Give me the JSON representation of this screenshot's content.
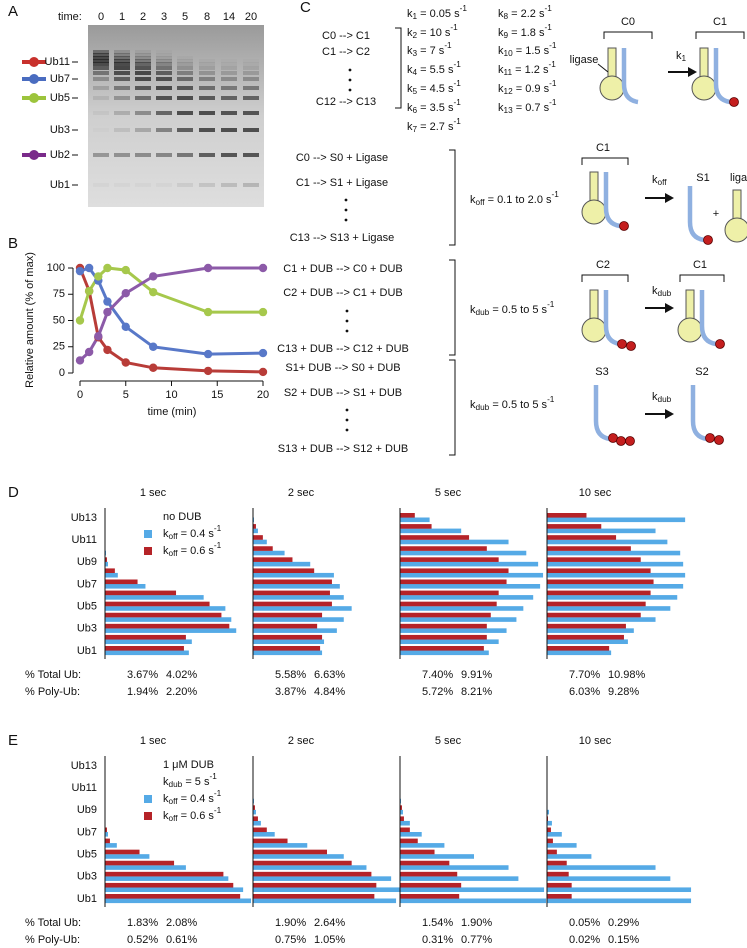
{
  "gel": {
    "panel_label": "A",
    "time_label": "time:",
    "lanes": [
      "0",
      "1",
      "2",
      "3",
      "5",
      "8",
      "14",
      "20"
    ],
    "markers": [
      {
        "label": "Ub11",
        "color": "#c8302c"
      },
      {
        "label": "Ub7",
        "color": "#4a6cc0"
      },
      {
        "label": "Ub5",
        "color": "#9cc43c"
      },
      {
        "label": "Ub3"
      },
      {
        "label": "Ub2",
        "color": "#7a2a8a"
      },
      {
        "label": "Ub1"
      }
    ]
  },
  "scheme": {
    "panel_label": "C",
    "rates": [
      [
        {
          "t": "k"
        },
        {
          "sub": "1"
        },
        {
          "t": " = 0.05 s"
        },
        {
          "sup": "-1"
        }
      ],
      [
        {
          "t": "k"
        },
        {
          "sub": "2"
        },
        {
          "t": " = 10 s"
        },
        {
          "sup": "-1"
        }
      ],
      [
        {
          "t": "k"
        },
        {
          "sub": "3"
        },
        {
          "t": " = 7 s"
        },
        {
          "sup": "-1"
        }
      ],
      [
        {
          "t": "k"
        },
        {
          "sub": "4"
        },
        {
          "t": " = 5.5 s"
        },
        {
          "sup": "-1"
        }
      ],
      [
        {
          "t": "k"
        },
        {
          "sub": "5"
        },
        {
          "t": " = 4.5 s"
        },
        {
          "sup": "-1"
        }
      ],
      [
        {
          "t": "k"
        },
        {
          "sub": "6"
        },
        {
          "t": " = 3.5 s"
        },
        {
          "sup": "-1"
        }
      ],
      [
        {
          "t": "k"
        },
        {
          "sub": "7"
        },
        {
          "t": " = 2.7 s"
        },
        {
          "sup": "-1"
        }
      ],
      [
        {
          "t": "k"
        },
        {
          "sub": "8"
        },
        {
          "t": " = 2.2 s"
        },
        {
          "sup": "-1"
        }
      ],
      [
        {
          "t": "k"
        },
        {
          "sub": "9"
        },
        {
          "t": " = 1.8 s"
        },
        {
          "sup": "-1"
        }
      ],
      [
        {
          "t": "k"
        },
        {
          "sub": "10"
        },
        {
          "t": " = 1.5 s"
        },
        {
          "sup": "-1"
        }
      ],
      [
        {
          "t": "k"
        },
        {
          "sub": "11"
        },
        {
          "t": " = 1.2 s"
        },
        {
          "sup": "-1"
        }
      ],
      [
        {
          "t": "k"
        },
        {
          "sub": "12"
        },
        {
          "t": " = 0.9 s"
        },
        {
          "sup": "-1"
        }
      ],
      [
        {
          "t": "k"
        },
        {
          "sub": "13"
        },
        {
          "t": " = 0.7 s"
        },
        {
          "sup": "-1"
        }
      ]
    ],
    "blocks": [
      {
        "reactions": [
          "C0 --> C1",
          "C1 --> C2",
          "C12 --> C13"
        ]
      },
      {
        "reactions": [
          "C0 --> S0 + Ligase",
          "C1 --> S1 + Ligase",
          "C13 --> S13 + Ligase"
        ],
        "rate": [
          {
            "t": "k"
          },
          {
            "sub": "off"
          },
          {
            "t": " = 0.1 to 2.0 s"
          },
          {
            "sup": "-1"
          }
        ]
      },
      {
        "reactions": [
          "C1 + DUB --> C0 + DUB",
          "C2 + DUB --> C1 + DUB",
          "C13 + DUB --> C12 + DUB"
        ],
        "rate": [
          {
            "t": "k"
          },
          {
            "sub": "dub"
          },
          {
            "t": " = 0.5 to 5 s"
          },
          {
            "sup": "-1"
          }
        ]
      },
      {
        "reactions": [
          "S1+ DUB --> S0 + DUB",
          "S2 + DUB --> S1 + DUB",
          "S13 + DUB --> S12 + DUB"
        ],
        "rate": [
          {
            "t": "k"
          },
          {
            "sub": "dub"
          },
          {
            "t": " = 0.5 to 5 s"
          },
          {
            "sup": "-1"
          }
        ]
      }
    ],
    "diagrams": [
      {
        "before": "C0",
        "after": "C1",
        "tag": "ligase",
        "arrow": [
          {
            "t": "k"
          },
          {
            "sub": "1"
          }
        ]
      },
      {
        "before": "C1",
        "after": "S1",
        "plus": "+",
        "tag": "ligase",
        "arrow": [
          {
            "t": "k"
          },
          {
            "sub": "off"
          }
        ]
      },
      {
        "before": "C2",
        "after": "C1",
        "arrow": [
          {
            "t": "k"
          },
          {
            "sub": "dub"
          }
        ]
      },
      {
        "before": "S3",
        "after": "S2",
        "arrow": [
          {
            "t": "k"
          },
          {
            "sub": "dub"
          }
        ]
      }
    ]
  },
  "chart_data": [
    {
      "type": "line",
      "panel_label": "B",
      "x": [
        0,
        1,
        2,
        3,
        5,
        8,
        14,
        20
      ],
      "xlim": [
        0,
        20
      ],
      "xticks": [
        0,
        5,
        10,
        15,
        20
      ],
      "ylim": [
        0,
        100
      ],
      "yticks": [
        0,
        25,
        50,
        75,
        100
      ],
      "xlabel": "time (min)",
      "ylabel": "Relative amount (% of max)",
      "series": [
        {
          "color": "#b83c38",
          "values": [
            100,
            78,
            34,
            22,
            10,
            5,
            2,
            1
          ]
        },
        {
          "color": "#5878c8",
          "values": [
            97,
            100,
            88,
            68,
            44,
            25,
            18,
            19
          ]
        },
        {
          "color": "#a6c84c",
          "values": [
            50,
            78,
            92,
            100,
            98,
            77,
            58,
            58
          ]
        },
        {
          "color": "#8c5aa8",
          "values": [
            12,
            20,
            35,
            58,
            76,
            92,
            100,
            100
          ]
        }
      ]
    },
    {
      "type": "hbar-panel",
      "panel_label": "D",
      "categories": [
        "Ub1",
        null,
        "Ub3",
        null,
        "Ub5",
        null,
        "Ub7",
        null,
        "Ub9",
        null,
        "Ub11",
        null,
        "Ub13"
      ],
      "xlim": [
        0,
        150
      ],
      "legend_title": [
        [
          {
            "t": "no DUB"
          }
        ]
      ],
      "series": [
        {
          "name": [
            {
              "t": "k"
            },
            {
              "sub": "off"
            },
            {
              "t": " = 0.4 s"
            },
            {
              "sup": "-1"
            }
          ],
          "color": "#55aae6"
        },
        {
          "name": [
            {
              "t": "k"
            },
            {
              "sub": "off"
            },
            {
              "t": " = 0.6 s"
            },
            {
              "sup": "-1"
            }
          ],
          "color": "#b52328"
        }
      ],
      "stat_labels": [
        "% Total Ub:",
        "% Poly-Ub:"
      ],
      "subplots": [
        {
          "title": "1 sec",
          "values": [
            [
              85,
              88,
              133,
              128,
              122,
              100,
              41,
              13,
              3,
              1,
              0,
              0,
              0
            ],
            [
              80,
              82,
              126,
              118,
              106,
              72,
              33,
              10,
              2,
              0,
              0,
              0,
              0
            ]
          ],
          "stats": [
            [
              "3.67%",
              "4.02%"
            ],
            [
              "1.94%",
              "2.20%"
            ]
          ]
        },
        {
          "title": "2 sec",
          "values": [
            [
              70,
              72,
              85,
              92,
              100,
              92,
              88,
              82,
              58,
              32,
              14,
              5,
              1
            ],
            [
              68,
              70,
              65,
              70,
              80,
              78,
              80,
              62,
              40,
              20,
              10,
              3,
              0
            ]
          ],
          "stats": [
            [
              "5.58%",
              "6.63%"
            ],
            [
              "3.87%",
              "4.84%"
            ]
          ]
        },
        {
          "title": "5 sec",
          "values": [
            [
              90,
              100,
              108,
              118,
              125,
              135,
              142,
              145,
              140,
              128,
              110,
              62,
              30
            ],
            [
              85,
              88,
              88,
              92,
              98,
              100,
              108,
              110,
              100,
              88,
              70,
              32,
              15
            ]
          ],
          "stats": [
            [
              "7.40%",
              "9.91%"
            ],
            [
              "5.72%",
              "8.21%"
            ]
          ]
        },
        {
          "title": "10 sec",
          "values": [
            [
              65,
              82,
              88,
              110,
              125,
              132,
              138,
              140,
              138,
              135,
              122,
              110,
              140
            ],
            [
              63,
              78,
              80,
              95,
              100,
              105,
              108,
              105,
              95,
              85,
              70,
              55,
              40
            ]
          ],
          "stats": [
            [
              "7.70%",
              "10.98%"
            ],
            [
              "6.03%",
              "9.28%"
            ]
          ]
        }
      ]
    },
    {
      "type": "hbar-panel",
      "panel_label": "E",
      "categories": [
        "Ub1",
        null,
        "Ub3",
        null,
        "Ub5",
        null,
        "Ub7",
        null,
        "Ub9",
        null,
        "Ub11",
        null,
        "Ub13"
      ],
      "xlim": [
        0,
        150
      ],
      "legend_title": [
        [
          {
            "t": "1 μM DUB"
          }
        ],
        [
          {
            "t": "k"
          },
          {
            "sub": "dub"
          },
          {
            "t": " = 5 s"
          },
          {
            "sup": "-1"
          }
        ]
      ],
      "series": [
        {
          "name": [
            {
              "t": "k"
            },
            {
              "sub": "off"
            },
            {
              "t": " = 0.4 s"
            },
            {
              "sup": "-1"
            }
          ],
          "color": "#55aae6"
        },
        {
          "name": [
            {
              "t": "k"
            },
            {
              "sub": "off"
            },
            {
              "t": " = 0.6 s"
            },
            {
              "sup": "-1"
            }
          ],
          "color": "#b52328"
        }
      ],
      "stat_labels": [
        "% Total Ub:",
        "% Poly-Ub:"
      ],
      "subplots": [
        {
          "title": "1 sec",
          "values": [
            [
              148,
              140,
              125,
              82,
              45,
              12,
              3,
              0,
              0,
              0,
              0,
              0,
              0
            ],
            [
              137,
              130,
              120,
              70,
              35,
              5,
              2,
              0,
              0,
              0,
              0,
              0,
              0
            ]
          ],
          "stats": [
            [
              "1.83%",
              "2.08%"
            ],
            [
              "0.52%",
              "0.61%"
            ]
          ]
        },
        {
          "title": "2 sec",
          "values": [
            [
              145,
              150,
              140,
              115,
              92,
              55,
              22,
              8,
              3,
              1,
              0,
              0,
              0
            ],
            [
              123,
              125,
              120,
              100,
              75,
              35,
              14,
              5,
              2,
              0,
              0,
              0,
              0
            ]
          ],
          "stats": [
            [
              "1.90%",
              "2.64%"
            ],
            [
              "0.75%",
              "1.05%"
            ]
          ]
        },
        {
          "title": "5 sec",
          "values": [
            [
              148,
              146,
              120,
              110,
              75,
              45,
              22,
              10,
              3,
              1,
              0,
              0,
              0
            ],
            [
              60,
              62,
              58,
              50,
              35,
              18,
              10,
              4,
              2,
              0,
              0,
              0,
              0
            ]
          ],
          "stats": [
            [
              "1.54%",
              "1.90%"
            ],
            [
              "0.31%",
              "0.77%"
            ]
          ]
        },
        {
          "title": "10 sec",
          "values": [
            [
              146,
              146,
              125,
              110,
              45,
              30,
              15,
              5,
              2,
              0,
              0,
              0,
              0
            ],
            [
              25,
              25,
              22,
              20,
              10,
              6,
              4,
              1,
              0,
              0,
              0,
              0,
              0
            ]
          ],
          "stats": [
            [
              "0.05%",
              "0.29%"
            ],
            [
              "0.02%",
              "0.15%"
            ]
          ]
        }
      ]
    }
  ]
}
